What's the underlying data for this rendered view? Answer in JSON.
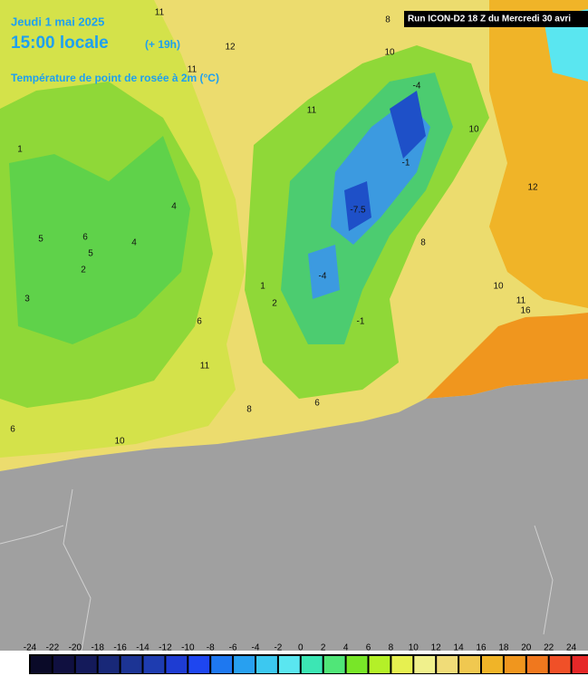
{
  "header": {
    "date": "Jeudi 1 mai 2025",
    "time": "15:00 locale",
    "lead": "(+ 19h)",
    "variable": "Température de point de rosée à 2m (°C)",
    "run": "Run ICON-D2 18 Z du Mercredi 30 avri"
  },
  "contour_labels": [
    "11",
    "12",
    "11",
    "11",
    "10",
    "8",
    "10",
    "12",
    "8",
    "10",
    "11",
    "16",
    "4",
    "4",
    "5",
    "6",
    "2",
    "3",
    "1",
    "2",
    "-4",
    "-1",
    "-7.5",
    "-4",
    "-1",
    "6",
    "10",
    "11",
    "6",
    "8",
    "1",
    "6",
    "5"
  ],
  "colorbar": {
    "ticks": [
      -24,
      -22,
      -20,
      -18,
      -16,
      -14,
      -12,
      -10,
      -8,
      -6,
      -4,
      -2,
      0,
      2,
      4,
      6,
      8,
      10,
      12,
      14,
      16,
      18,
      20,
      22,
      24
    ],
    "colors": [
      "#0a0a28",
      "#101040",
      "#141a5a",
      "#182878",
      "#1c3494",
      "#1e3cb0",
      "#1e3cd2",
      "#1e46f0",
      "#1e78f0",
      "#28a0f0",
      "#3cc8f0",
      "#5ae6f0",
      "#3ce6b4",
      "#50e678",
      "#78e628",
      "#b4f028",
      "#e6f050",
      "#f0f08c",
      "#f0dc78",
      "#f0c850",
      "#f0b428",
      "#f0961e",
      "#f0781e",
      "#f05028",
      "#e62828"
    ]
  }
}
